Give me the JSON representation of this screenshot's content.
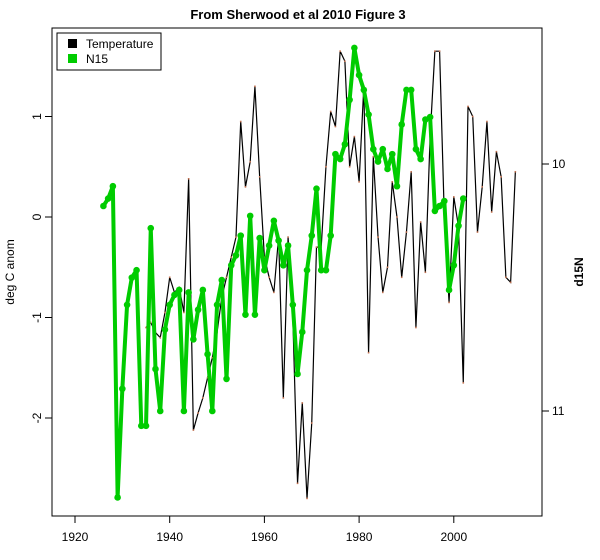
{
  "chart_data": {
    "type": "line",
    "title": "From Sherwood et al 2010 Figure 3",
    "xlabel": "",
    "ylabel": "deg C anom",
    "ylabel_right": "d15N",
    "xlim": [
      1915,
      2018
    ],
    "ylim": [
      -2.95,
      1.9
    ],
    "ylim_right": [
      9.45,
      11.42
    ],
    "right_axis_inverted": true,
    "x_ticks": [
      "1920",
      "1940",
      "1960",
      "1980",
      "2000"
    ],
    "y_ticks": [
      "-2",
      "-1",
      "0",
      "1"
    ],
    "y_ticks_right": [
      "10",
      "11"
    ],
    "legend_position": "top-left",
    "series": [
      {
        "name": "Temperature",
        "color": "#000000",
        "axis": "left",
        "x": [
          1935,
          1936,
          1937,
          1938,
          1939,
          1940,
          1941,
          1942,
          1943,
          1944,
          1945,
          1946,
          1947,
          1948,
          1949,
          1950,
          1951,
          1952,
          1953,
          1954,
          1955,
          1956,
          1957,
          1958,
          1959,
          1960,
          1961,
          1962,
          1963,
          1964,
          1965,
          1966,
          1967,
          1968,
          1969,
          1970,
          1971,
          1972,
          1973,
          1974,
          1975,
          1976,
          1977,
          1978,
          1979,
          1980,
          1981,
          1982,
          1983,
          1984,
          1985,
          1986,
          1987,
          1988,
          1989,
          1990,
          1991,
          1992,
          1993,
          1994,
          1995,
          1996,
          1997,
          1998,
          1999,
          2000,
          2001,
          2002,
          2003,
          2004,
          2005,
          2006,
          2007,
          2008,
          2009,
          2010,
          2011,
          2012,
          2013
        ],
        "values": [
          -1.1,
          -1.05,
          -1.15,
          -1.2,
          -0.95,
          -0.6,
          -0.75,
          -0.7,
          -0.95,
          0.38,
          -2.12,
          -1.95,
          -1.8,
          -1.6,
          -1.4,
          -1.15,
          -0.8,
          -0.6,
          -0.4,
          -0.2,
          0.95,
          0.3,
          0.55,
          1.3,
          0.4,
          -0.4,
          -0.6,
          -0.75,
          -0.2,
          -1.8,
          -0.2,
          -1.0,
          -2.65,
          -1.85,
          -2.8,
          -2.05,
          -0.3,
          -0.3,
          0.5,
          1.05,
          0.9,
          1.65,
          1.55,
          0.5,
          0.8,
          0.35,
          1.3,
          -1.35,
          0.6,
          -0.2,
          -0.75,
          -0.5,
          0.35,
          0.0,
          -0.6,
          -0.15,
          0.45,
          -1.1,
          -0.05,
          -0.55,
          0.8,
          1.65,
          1.65,
          0.0,
          -0.85,
          0.2,
          -0.1,
          -1.65,
          1.1,
          1.0,
          -0.15,
          0.3,
          0.95,
          0.05,
          0.65,
          0.4,
          -0.6,
          -0.65,
          0.45
        ]
      },
      {
        "name": "N15",
        "color": "#00cc00",
        "axis": "right",
        "x": [
          1926,
          1927,
          1928,
          1929,
          1930,
          1931,
          1932,
          1933,
          1934,
          1935,
          1936,
          1937,
          1938,
          1939,
          1940,
          1941,
          1942,
          1943,
          1944,
          1945,
          1946,
          1947,
          1948,
          1949,
          1950,
          1951,
          1952,
          1953,
          1954,
          1955,
          1956,
          1957,
          1958,
          1959,
          1960,
          1961,
          1962,
          1963,
          1964,
          1965,
          1966,
          1967,
          1968,
          1969,
          1970,
          1971,
          1972,
          1973,
          1974,
          1975,
          1976,
          1977,
          1978,
          1979,
          1980,
          1981,
          1982,
          1983,
          1984,
          1985,
          1986,
          1987,
          1988,
          1989,
          1990,
          1991,
          1992,
          1993,
          1994,
          1995,
          1996,
          1997,
          1998,
          1999,
          2000,
          2001,
          2002
        ],
        "values": [
          10.17,
          10.14,
          10.09,
          11.35,
          10.91,
          10.57,
          10.46,
          10.43,
          11.06,
          11.06,
          10.26,
          10.83,
          11.0,
          10.67,
          10.57,
          10.53,
          10.51,
          11.0,
          10.52,
          10.71,
          10.59,
          10.51,
          10.77,
          11.0,
          10.57,
          10.47,
          10.87,
          10.41,
          10.37,
          10.29,
          10.61,
          10.21,
          10.61,
          10.3,
          10.43,
          10.33,
          10.23,
          10.31,
          10.41,
          10.33,
          10.57,
          10.85,
          10.68,
          10.43,
          10.29,
          10.1,
          10.43,
          10.43,
          10.29,
          9.96,
          9.98,
          9.92,
          9.74,
          9.53,
          9.64,
          9.7,
          9.8,
          9.94,
          9.99,
          9.94,
          10.02,
          9.96,
          10.09,
          9.84,
          9.7,
          9.7,
          9.94,
          9.98,
          9.82,
          9.81,
          10.19,
          10.17,
          10.15,
          10.51,
          10.41,
          10.25,
          10.14
        ]
      }
    ]
  }
}
